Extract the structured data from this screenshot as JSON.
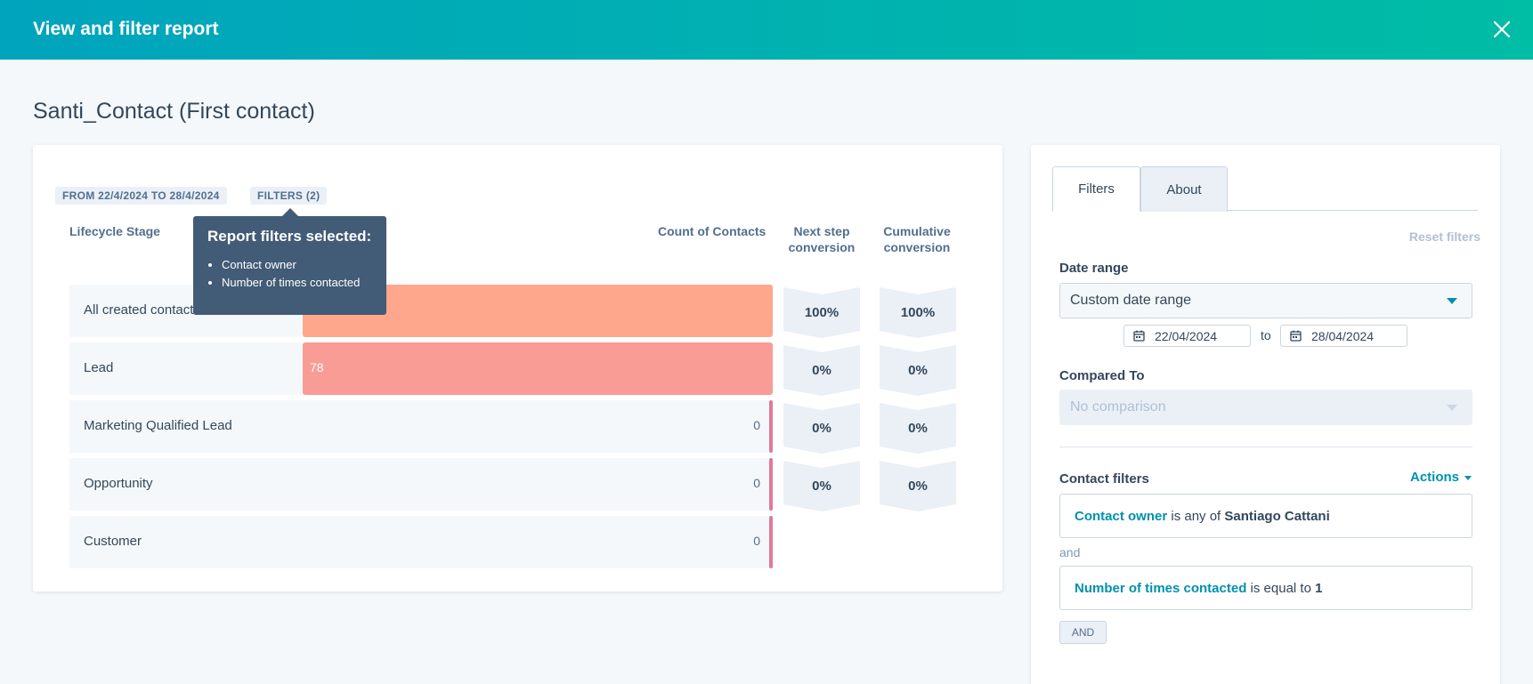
{
  "header": {
    "title": "View and filter report"
  },
  "page": {
    "title": "Santi_Contact (First contact)"
  },
  "report": {
    "date_chip": "FROM 22/4/2024 TO 28/4/2024",
    "filters_chip": "FILTERS (2)",
    "columns": {
      "stage": "Lifecycle Stage",
      "count": "Count of Contacts",
      "next": "Next step conversion",
      "cumulative": "Cumulative conversion"
    },
    "rows": [
      {
        "label": "All created contacts",
        "count": "78",
        "next": "100%",
        "cumulative": "100%"
      },
      {
        "label": "Lead",
        "count": "78",
        "next": "0%",
        "cumulative": "0%"
      },
      {
        "label": "Marketing Qualified Lead",
        "count": "0",
        "next": "0%",
        "cumulative": "0%"
      },
      {
        "label": "Opportunity",
        "count": "0",
        "next": "0%",
        "cumulative": "0%"
      },
      {
        "label": "Customer",
        "count": "0"
      }
    ],
    "colors": {
      "bar1": "#ffa78c",
      "bar2": "#f99c95",
      "thin": "#e07a99"
    }
  },
  "tooltip": {
    "title": "Report filters selected:",
    "items": [
      "Contact owner",
      "Number of times contacted"
    ]
  },
  "panel": {
    "tabs": [
      "Filters",
      "About"
    ],
    "reset": "Reset filters",
    "date_range_label": "Date range",
    "date_range_value": "Custom date range",
    "date_from": "22/04/2024",
    "to": "to",
    "date_to": "28/04/2024",
    "compared_label": "Compared To",
    "compared_value": "No comparison",
    "contact_filters_label": "Contact filters",
    "actions": "Actions",
    "filter1": {
      "property": "Contact owner",
      "op": "is any of",
      "value": "Santiago Cattani"
    },
    "and_text": "and",
    "filter2": {
      "property": "Number of times contacted",
      "op": "is equal to",
      "value": "1"
    },
    "and_button": "AND"
  }
}
